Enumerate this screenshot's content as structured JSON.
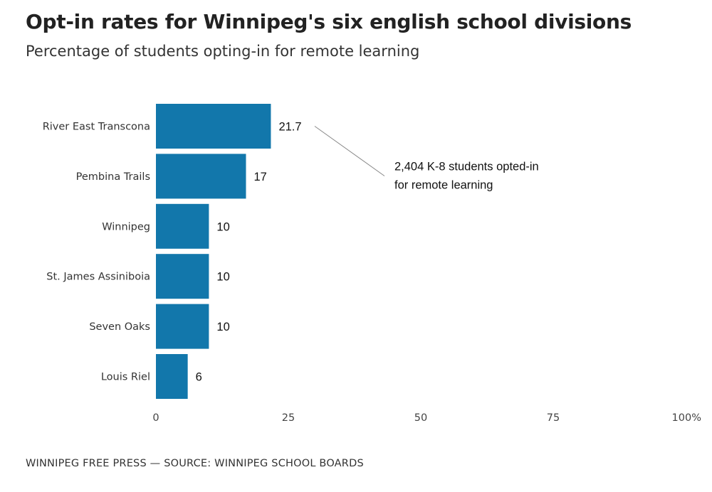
{
  "title": "Opt-in rates for Winnipeg's six english school divisions",
  "subtitle": "Percentage of students opting-in for remote learning",
  "footer": "WINNIPEG FREE PRESS — SOURCE: WINNIPEG SCHOOL BOARDS",
  "colors": {
    "bar": "#1277ab",
    "annotation_line": "#888888"
  },
  "chart_data": {
    "type": "bar",
    "orientation": "horizontal",
    "categories": [
      "River East Transcona",
      "Pembina Trails",
      "Winnipeg",
      "St. James Assiniboia",
      "Seven Oaks",
      "Louis Riel"
    ],
    "values": [
      21.7,
      17,
      10,
      10,
      10,
      6
    ],
    "value_labels": [
      "21.7",
      "17",
      "10",
      "10",
      "10",
      "6"
    ],
    "xlim": [
      0,
      100
    ],
    "xticks": [
      0,
      25,
      50,
      75,
      100
    ],
    "xtick_labels": [
      "0",
      "25",
      "50",
      "75",
      "100%"
    ],
    "grid": false,
    "legend": "none",
    "annotation": {
      "category": "River East Transcona",
      "lines": [
        "2,404 K-8 students opted-in",
        "for remote learning"
      ]
    }
  }
}
